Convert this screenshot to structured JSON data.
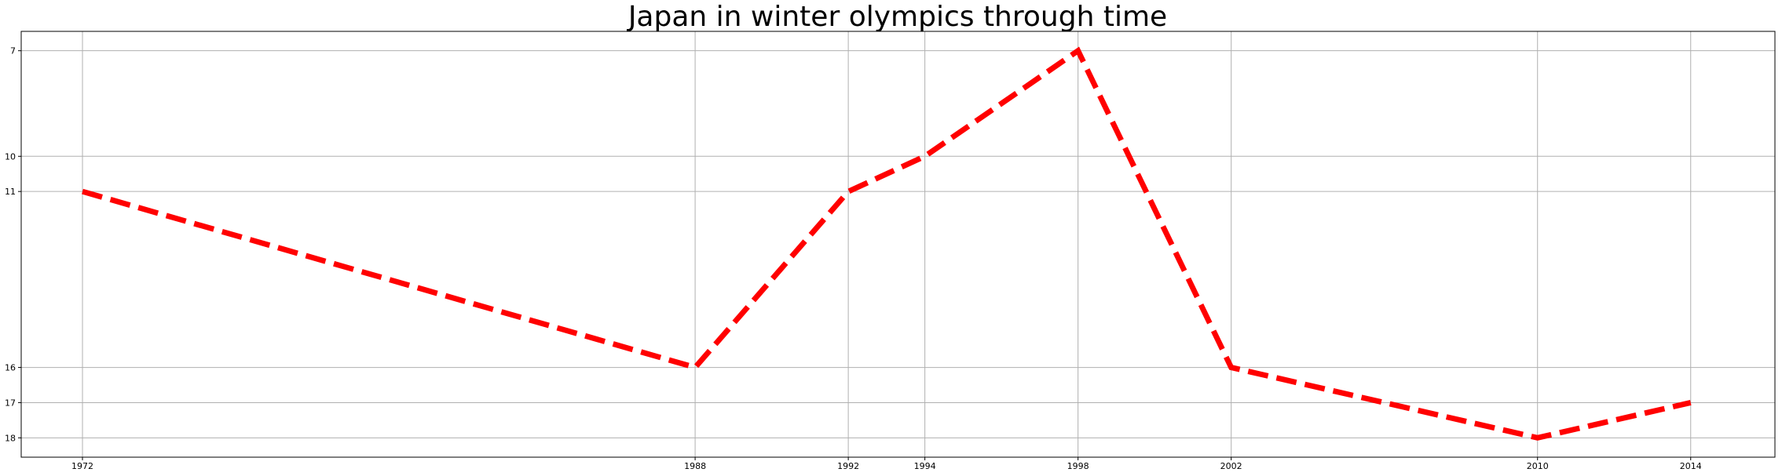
{
  "chart_data": {
    "type": "line",
    "title": "Japan in winter olympics through time",
    "xlabel": "",
    "ylabel": "",
    "x": [
      1972,
      1988,
      1992,
      1994,
      1998,
      2002,
      2010,
      2014
    ],
    "series": [
      {
        "values": [
          11,
          16,
          11,
          10,
          7,
          16,
          18,
          17
        ],
        "color": "#ff0000",
        "line_style": "dashed"
      }
    ],
    "xticks": [
      1972,
      1988,
      1992,
      1994,
      1998,
      2002,
      2010,
      2014
    ],
    "yticks": [
      7,
      10,
      11,
      16,
      17,
      18
    ],
    "xlim": [
      1970.4,
      2016.2
    ],
    "ylim": [
      18.55,
      6.45
    ],
    "y_inverted": true,
    "grid": true
  }
}
